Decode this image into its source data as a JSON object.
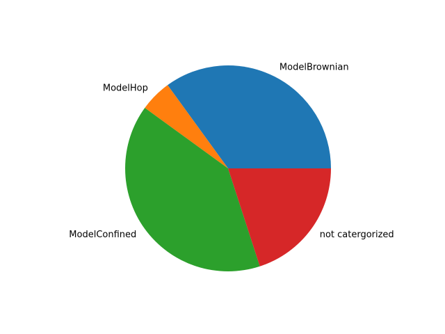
{
  "chart_data": {
    "type": "pie",
    "title": "",
    "labels": [
      "ModelBrownian",
      "ModelHop",
      "ModelConfined",
      "not catergorized"
    ],
    "values": [
      35,
      5,
      40,
      20
    ],
    "colors": [
      "#1f77b4",
      "#ff7f0e",
      "#2ca02c",
      "#d62728"
    ],
    "start_angle_deg": 0,
    "direction": "counterclockwise",
    "legend": "none"
  }
}
